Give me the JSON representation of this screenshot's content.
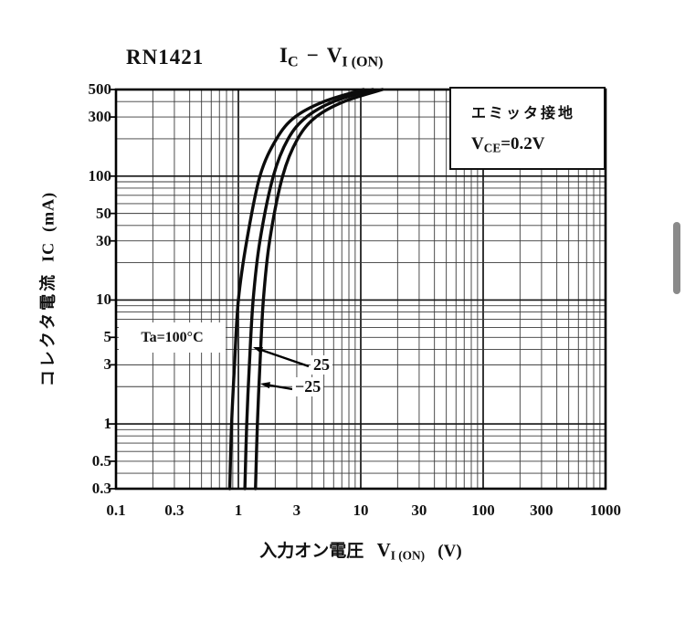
{
  "window": {
    "background": "#ffffff",
    "scrollbar_color": "#8a8a8a"
  },
  "header": {
    "device": "RN1421",
    "ic": "I",
    "ic_sub": "C",
    "dash": "−",
    "v": "V",
    "v_sub": "I (ON)"
  },
  "legend": {
    "line1": "エミッタ接地",
    "v": "V",
    "v_sub": "CE",
    "v_value": "=0.2V"
  },
  "plot_annotations": {
    "ta": "Ta=100°C",
    "curve2": "25",
    "curve3": "−25"
  },
  "x_axis": {
    "jp": "入力オン電圧",
    "v": "V",
    "v_sub": "I (ON)",
    "unit": "(V)",
    "ticks": [
      "0.1",
      "0.3",
      "1",
      "3",
      "10",
      "30",
      "100",
      "300",
      "1000"
    ]
  },
  "y_axis": {
    "jp": "コレクタ電流",
    "sym": "IC",
    "unit": "(mA)",
    "ticks": [
      "500",
      "300",
      "100",
      "50",
      "30",
      "10",
      "5",
      "3",
      "1",
      "0.5",
      "0.3"
    ]
  },
  "chart_data": {
    "type": "line",
    "title": "IC − VI(ON)",
    "device": "RN1421",
    "condition": "エミッタ接地, VCE=0.2V",
    "xlabel": "入力オン電圧 VI(ON) (V)",
    "ylabel": "コレクタ電流 IC (mA)",
    "x_scale": "log",
    "y_scale": "log",
    "xlim": [
      0.1,
      1000
    ],
    "ylim": [
      0.3,
      500
    ],
    "x_ticks": [
      0.1,
      0.3,
      1,
      3,
      10,
      30,
      100,
      300,
      1000
    ],
    "y_ticks": [
      500,
      300,
      100,
      50,
      30,
      10,
      5,
      3,
      1,
      0.5,
      0.3
    ],
    "grid": "log-log full minor grid",
    "legend_position": "top-right box",
    "series": [
      {
        "name": "Ta=100°C",
        "points_vi_ic": [
          [
            0.85,
            0.3
          ],
          [
            0.88,
            1
          ],
          [
            0.93,
            3
          ],
          [
            1.0,
            10
          ],
          [
            1.17,
            30
          ],
          [
            1.5,
            100
          ],
          [
            2.05,
            200
          ],
          [
            2.9,
            300
          ],
          [
            5.0,
            400
          ],
          [
            10.5,
            500
          ]
        ]
      },
      {
        "name": "25",
        "points_vi_ic": [
          [
            1.13,
            0.3
          ],
          [
            1.17,
            1
          ],
          [
            1.23,
            3
          ],
          [
            1.32,
            10
          ],
          [
            1.5,
            30
          ],
          [
            1.93,
            100
          ],
          [
            2.55,
            200
          ],
          [
            3.6,
            300
          ],
          [
            6.0,
            400
          ],
          [
            12.5,
            500
          ]
        ]
      },
      {
        "name": "-25",
        "points_vi_ic": [
          [
            1.38,
            0.3
          ],
          [
            1.43,
            1
          ],
          [
            1.5,
            3
          ],
          [
            1.6,
            10
          ],
          [
            1.8,
            30
          ],
          [
            2.3,
            100
          ],
          [
            3.05,
            200
          ],
          [
            4.3,
            300
          ],
          [
            7.3,
            400
          ],
          [
            15.0,
            500
          ]
        ]
      }
    ]
  }
}
